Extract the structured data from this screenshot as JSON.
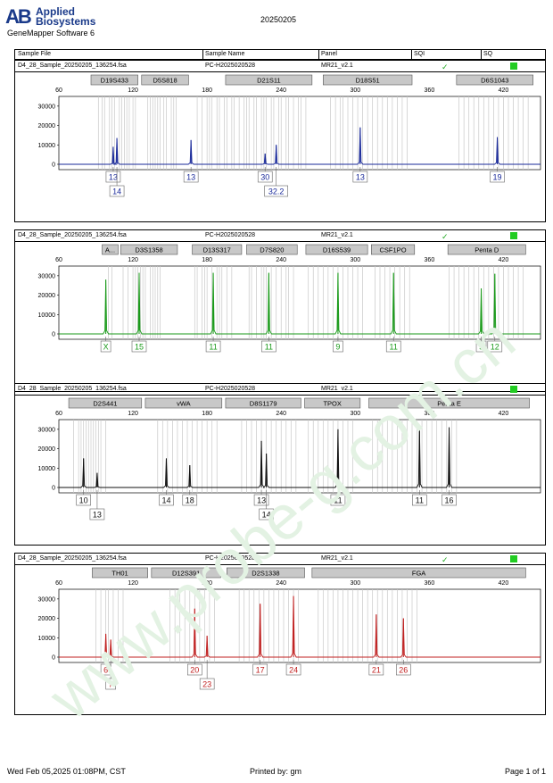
{
  "header": {
    "brand_line1": "Applied",
    "brand_line2": "Biosystems",
    "brand_mark": "AB",
    "software": "GeneMapper Software 6",
    "date_title": "20250205"
  },
  "columns": {
    "sample_file": "Sample File",
    "sample_name": "Sample Name",
    "panel": "Panel",
    "sqi": "SQI",
    "sq": "SQ"
  },
  "watermark": "www.probe-g.com.cn",
  "colors": {
    "blue": "#1a2a9a",
    "green": "#1a9a1a",
    "black": "#111111",
    "red": "#c02020",
    "sq": "#22cc22",
    "check": "#22aa22"
  },
  "panels": [
    {
      "file": "D4_28_Sample_20250205_136254.fsa",
      "name": "PC-H2025020528",
      "panel": "MR21_v2.1",
      "sqi": "✓",
      "color": "#1a2a9a",
      "loci": [
        {
          "label": "D19S433",
          "from": 86,
          "to": 124
        },
        {
          "label": "D5S818",
          "from": 127,
          "to": 165
        },
        {
          "label": "D21S11",
          "from": 195,
          "to": 265
        },
        {
          "label": "D18S51",
          "from": 274,
          "to": 346
        },
        {
          "label": "D6S1043",
          "from": 382,
          "to": 444
        }
      ],
      "bins": [
        92,
        95,
        97,
        101,
        103,
        105,
        109,
        111,
        113,
        115,
        117,
        120,
        122,
        132,
        134,
        136,
        138,
        140,
        142,
        145,
        147,
        151,
        153,
        155,
        172,
        176,
        180,
        182,
        184,
        188,
        190,
        194,
        196,
        200,
        202,
        206,
        210,
        212,
        214,
        218,
        220,
        224,
        226,
        228,
        232,
        234,
        238,
        240,
        244,
        246,
        250,
        254,
        256,
        260,
        280,
        284,
        288,
        290,
        294,
        298,
        302,
        306,
        310,
        314,
        318,
        322,
        326,
        330,
        334,
        338,
        342,
        384,
        388,
        392,
        396,
        400,
        404,
        408,
        412,
        416,
        420,
        424,
        428,
        432,
        436,
        440
      ],
      "peaks": [
        {
          "x": 104,
          "h": 9000,
          "allele": "13"
        },
        {
          "x": 107,
          "h": 13500,
          "allele": "14"
        },
        {
          "x": 167,
          "h": 12500,
          "allele": "13"
        },
        {
          "x": 227,
          "h": 5500,
          "allele": "30"
        },
        {
          "x": 236,
          "h": 10000,
          "allele": "32.2"
        },
        {
          "x": 304,
          "h": 19000,
          "allele": "13"
        },
        {
          "x": 415,
          "h": 14000,
          "allele": "19"
        }
      ]
    },
    {
      "file": "D4_28_Sample_20250205_136254.fsa",
      "name": "PC-H2025020528",
      "panel": "MR21_v2.1",
      "sqi": "✓",
      "color": "#1a9a1a",
      "loci": [
        {
          "label": "A...",
          "from": 95,
          "to": 108
        },
        {
          "label": "D3S1358",
          "from": 110,
          "to": 156
        },
        {
          "label": "D13S317",
          "from": 168,
          "to": 208
        },
        {
          "label": "D7S820",
          "from": 212,
          "to": 253
        },
        {
          "label": "D16S539",
          "from": 260,
          "to": 310
        },
        {
          "label": "CSF1PO",
          "from": 313,
          "to": 348
        },
        {
          "label": "Penta D",
          "from": 375,
          "to": 438
        }
      ],
      "bins": [
        100,
        103,
        112,
        116,
        120,
        122,
        124,
        126,
        128,
        130,
        134,
        136,
        138,
        140,
        142,
        170,
        172,
        176,
        178,
        180,
        184,
        188,
        190,
        192,
        196,
        200,
        214,
        216,
        220,
        224,
        226,
        228,
        232,
        236,
        240,
        244,
        246,
        250,
        262,
        266,
        270,
        274,
        278,
        282,
        286,
        290,
        294,
        298,
        302,
        306,
        316,
        320,
        324,
        328,
        332,
        336,
        340,
        344,
        376,
        380,
        384,
        388,
        392,
        396,
        400,
        404,
        408,
        412,
        416,
        420,
        424,
        428,
        432,
        436
      ],
      "peaks": [
        {
          "x": 98,
          "h": 28000,
          "allele": "X"
        },
        {
          "x": 125,
          "h": 31500,
          "allele": "15"
        },
        {
          "x": 185,
          "h": 31500,
          "allele": "11"
        },
        {
          "x": 230,
          "h": 31500,
          "allele": "11"
        },
        {
          "x": 286,
          "h": 31500,
          "allele": "9"
        },
        {
          "x": 331,
          "h": 31500,
          "allele": "11"
        },
        {
          "x": 402,
          "h": 23500,
          "allele": "9"
        },
        {
          "x": 413,
          "h": 31000,
          "allele": "12"
        }
      ]
    },
    {
      "file": "D4_28_Sample_20250205_136254.fsa",
      "name": "PC-H2025020528",
      "panel": "MR21_v2.1",
      "sqi": "",
      "color": "#111111",
      "loci": [
        {
          "label": "D2S441",
          "from": 68,
          "to": 127
        },
        {
          "label": "vWA",
          "from": 130,
          "to": 192
        },
        {
          "label": "D8S1179",
          "from": 195,
          "to": 256
        },
        {
          "label": "TPOX",
          "from": 259,
          "to": 304
        },
        {
          "label": "Penta E",
          "from": 311,
          "to": 441
        }
      ],
      "bins": [
        72,
        76,
        78,
        80,
        82,
        84,
        86,
        88,
        90,
        92,
        94,
        98,
        140,
        144,
        148,
        152,
        156,
        160,
        164,
        168,
        172,
        176,
        180,
        184,
        188,
        208,
        212,
        216,
        220,
        224,
        228,
        232,
        236,
        240,
        244,
        248,
        252,
        262,
        266,
        270,
        274,
        278,
        282,
        286,
        290,
        294,
        298,
        314,
        318,
        322,
        326,
        330,
        334,
        338,
        342,
        346,
        350,
        354,
        358,
        362,
        366,
        370,
        374,
        378,
        382
      ],
      "peaks": [
        {
          "x": 80,
          "h": 15000,
          "allele": "10"
        },
        {
          "x": 91,
          "h": 7500,
          "allele": "13"
        },
        {
          "x": 147,
          "h": 15000,
          "allele": "14"
        },
        {
          "x": 166,
          "h": 11500,
          "allele": "18"
        },
        {
          "x": 224,
          "h": 24000,
          "allele": "13"
        },
        {
          "x": 228,
          "h": 17500,
          "allele": "14"
        },
        {
          "x": 286,
          "h": 30000,
          "allele": "11"
        },
        {
          "x": 352,
          "h": 31000,
          "allele": "11"
        },
        {
          "x": 376,
          "h": 31000,
          "allele": "16"
        }
      ]
    },
    {
      "file": "D4_28_Sample_20250205_136254.fsa",
      "name": "PC-H2025020528",
      "panel": "MR21_v2.1",
      "sqi": "✓",
      "color": "#c02020",
      "loci": [
        {
          "label": "TH01",
          "from": 87,
          "to": 132
        },
        {
          "label": "D12S391",
          "from": 135,
          "to": 191
        },
        {
          "label": "D2S1338",
          "from": 196,
          "to": 259
        },
        {
          "label": "FGA",
          "from": 265,
          "to": 438
        }
      ],
      "bins": [
        90,
        94,
        98,
        100,
        104,
        108,
        112,
        150,
        154,
        158,
        162,
        166,
        170,
        174,
        178,
        182,
        186,
        206,
        210,
        214,
        218,
        222,
        226,
        230,
        234,
        238,
        242,
        246,
        250,
        254,
        270,
        274,
        278,
        282,
        286,
        290,
        294,
        298,
        302,
        306,
        310,
        314,
        318,
        322,
        326,
        330,
        334,
        338,
        342,
        346,
        350
      ],
      "peaks": [
        {
          "x": 98,
          "h": 12000,
          "allele": "6"
        },
        {
          "x": 102,
          "h": 9000,
          "allele": "7"
        },
        {
          "x": 170,
          "h": 25000,
          "allele": "20"
        },
        {
          "x": 180,
          "h": 11000,
          "allele": "23"
        },
        {
          "x": 223,
          "h": 27500,
          "allele": "17"
        },
        {
          "x": 250,
          "h": 31500,
          "allele": "24"
        },
        {
          "x": 317,
          "h": 22000,
          "allele": "21"
        },
        {
          "x": 339,
          "h": 20000,
          "allele": "26"
        }
      ]
    }
  ],
  "chart_data": {
    "type": "line",
    "x_ticks": [
      60,
      120,
      180,
      240,
      300,
      360,
      420
    ],
    "y_ticks": [
      0,
      10000,
      20000,
      30000
    ],
    "xlim": [
      60,
      450
    ],
    "ylim": [
      0,
      35000
    ]
  },
  "footer": {
    "datetime": "Wed Feb 05,2025 01:08PM, CST",
    "printed_by": "Printed by: gm",
    "page": "Page 1 of 1"
  }
}
